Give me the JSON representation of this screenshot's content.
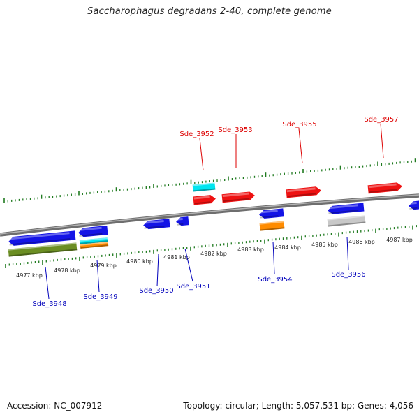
{
  "title": "Saccharophagus degradans 2-40, complete genome",
  "footer": {
    "accession": "Accession: NC_007912",
    "summary": "Topology: circular; Length: 5,057,531 bp; Genes: 4,056"
  },
  "colors": {
    "backbone": "#8c8c8c",
    "tick": "#1f7a1f",
    "top_label": "#dd0000",
    "bottom_label": "#0000bb",
    "red_gene": "#ee1111",
    "blue_gene": "#1414e6",
    "cyan_feature": "#00e6f0",
    "orange_feature": "#ff8c00",
    "olive_feature": "#6b8e23",
    "gray_feature": "#c8c8c8"
  },
  "scale_labels": [
    "4977 kbp",
    "4978 kbp",
    "4979 kbp",
    "4980 kbp",
    "4981 kbp",
    "4982 kbp",
    "4983 kbp",
    "4984 kbp",
    "4985 kbp",
    "4986 kbp",
    "4987 kbp"
  ],
  "top_genes": [
    "Sde_3952",
    "Sde_3953",
    "Sde_3955",
    "Sde_3957"
  ],
  "bottom_genes": [
    "Sde_3948",
    "Sde_3949",
    "Sde_3950",
    "Sde_3951",
    "Sde_3954",
    "Sde_3956"
  ]
}
